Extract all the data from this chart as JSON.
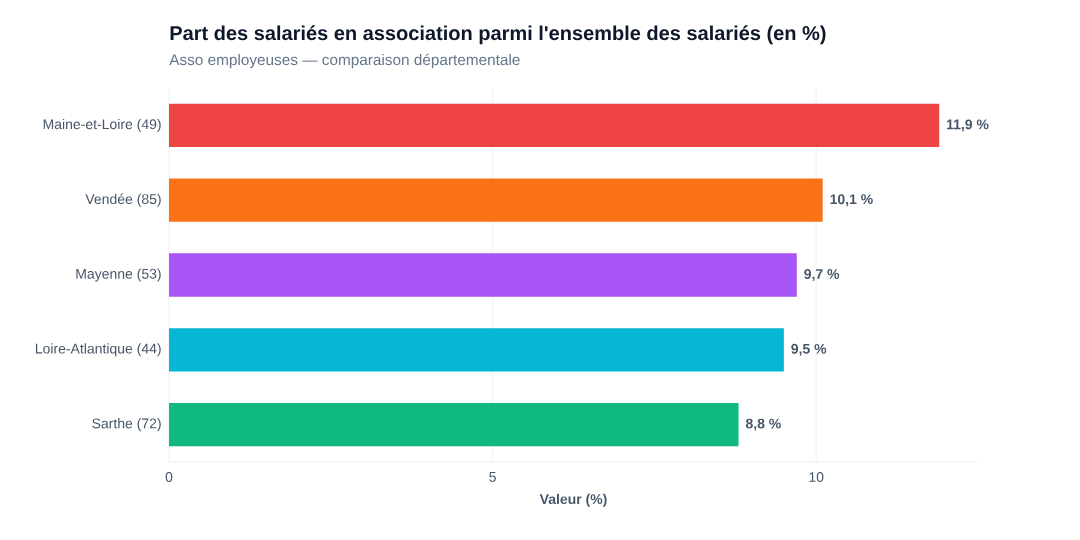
{
  "chart_data": {
    "type": "bar",
    "orientation": "horizontal",
    "title": "Part des salariés en association parmi l'ensemble des salariés (en %)",
    "subtitle": "Asso employeuses — comparaison départementale",
    "xlabel": "Valeur (%)",
    "categories": [
      "Maine-et-Loire (49)",
      "Vendée (85)",
      "Mayenne (53)",
      "Loire-Atlantique (44)",
      "Sarthe (72)"
    ],
    "values": [
      11.9,
      10.1,
      9.7,
      9.5,
      8.8
    ],
    "value_labels": [
      "11,9 %",
      "10,1 %",
      "9,7 %",
      "9,5 %",
      "8,8 %"
    ],
    "colors": [
      "#ef4444",
      "#f97316",
      "#a855f7",
      "#06b6d4",
      "#10b981"
    ],
    "xlim": [
      0,
      12.5
    ],
    "xticks": [
      0,
      5,
      10
    ],
    "grid": "x"
  }
}
